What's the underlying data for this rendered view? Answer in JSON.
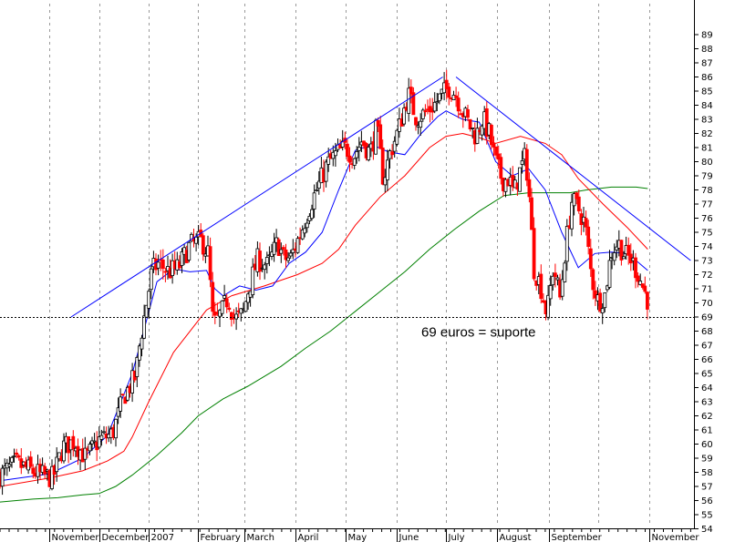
{
  "chart_data": {
    "type": "candlestick",
    "y_axis": {
      "min": 54,
      "max": 89,
      "step": 1,
      "position": "right",
      "grid": false
    },
    "x_axis": {
      "grid": "vertical-dashed",
      "labels": [
        "November",
        "December",
        "2007",
        "February",
        "March",
        "April",
        "May",
        "June",
        "July",
        "August",
        "September",
        "November"
      ],
      "label_day_index": [
        10,
        40,
        70,
        100,
        128,
        159,
        189,
        220,
        250,
        281,
        312,
        373
      ],
      "gridline_day_index": [
        10,
        40,
        70,
        100,
        128,
        159,
        189,
        220,
        250,
        281,
        312,
        342,
        373
      ],
      "range_days": [
        -20,
        400
      ]
    },
    "colors": {
      "up_candle": "#000000",
      "down_candle": "#ff0000",
      "ma_short": "#0000ff",
      "ma_medium": "#ff0000",
      "ma_long": "#008000",
      "trendline": "#0000ff",
      "support_line": "#000000",
      "grid": "#999999"
    },
    "trendlines": [
      {
        "name": "",
        "from": {
          "day": 23,
          "value": 69
        },
        "to": {
          "day": 248,
          "value": 86
        }
      },
      {
        "name": "",
        "from": {
          "day": 256,
          "value": 86
        },
        "to": {
          "day": 398,
          "value": 73
        }
      }
    ],
    "support_line": {
      "value": 69
    },
    "annotation": {
      "text": "69 euros = suporte",
      "day": 235,
      "value": 67.6
    },
    "moving_averages": {
      "short": [
        [
          -20,
          57.4
        ],
        [
          10,
          57.9
        ],
        [
          30,
          59
        ],
        [
          45,
          60.6
        ],
        [
          60,
          65
        ],
        [
          75,
          71.5
        ],
        [
          85,
          72.4
        ],
        [
          95,
          72.2
        ],
        [
          105,
          72.3
        ],
        [
          110,
          71
        ],
        [
          115,
          70.5
        ],
        [
          125,
          71.2
        ],
        [
          135,
          70.9
        ],
        [
          145,
          71.2
        ],
        [
          155,
          72.8
        ],
        [
          165,
          73.6
        ],
        [
          175,
          75
        ],
        [
          185,
          78
        ],
        [
          195,
          80.8
        ],
        [
          205,
          81.2
        ],
        [
          215,
          80.7
        ],
        [
          225,
          80.5
        ],
        [
          235,
          82
        ],
        [
          245,
          83.2
        ],
        [
          250,
          83.6
        ],
        [
          260,
          83
        ],
        [
          270,
          82.8
        ],
        [
          280,
          80
        ],
        [
          290,
          79
        ],
        [
          300,
          79.5
        ],
        [
          310,
          78
        ],
        [
          320,
          75
        ],
        [
          330,
          72.5
        ],
        [
          340,
          73.5
        ],
        [
          350,
          73.6
        ],
        [
          360,
          73.5
        ],
        [
          370,
          72.5
        ],
        [
          372,
          72.3
        ]
      ],
      "medium": [
        [
          -20,
          57
        ],
        [
          10,
          57.6
        ],
        [
          30,
          58.1
        ],
        [
          45,
          58.8
        ],
        [
          55,
          59.5
        ],
        [
          60,
          60.5
        ],
        [
          70,
          63
        ],
        [
          85,
          66.5
        ],
        [
          105,
          69.5
        ],
        [
          120,
          70.5
        ],
        [
          140,
          71.2
        ],
        [
          160,
          72
        ],
        [
          175,
          72.8
        ],
        [
          185,
          73.8
        ],
        [
          195,
          75.5
        ],
        [
          210,
          77.5
        ],
        [
          225,
          79
        ],
        [
          240,
          81
        ],
        [
          250,
          81.8
        ],
        [
          260,
          82
        ],
        [
          270,
          81.7
        ],
        [
          280,
          81.3
        ],
        [
          295,
          81.8
        ],
        [
          310,
          81.3
        ],
        [
          320,
          80.5
        ],
        [
          330,
          78.8
        ],
        [
          345,
          77
        ],
        [
          360,
          75.3
        ],
        [
          372,
          73.8
        ]
      ],
      "long": [
        [
          -20,
          55.9
        ],
        [
          0,
          56.1
        ],
        [
          15,
          56.2
        ],
        [
          30,
          56.4
        ],
        [
          40,
          56.5
        ],
        [
          50,
          57
        ],
        [
          60,
          57.8
        ],
        [
          75,
          59.2
        ],
        [
          90,
          60.8
        ],
        [
          100,
          62
        ],
        [
          115,
          63.2
        ],
        [
          130,
          64.1
        ],
        [
          150,
          65.5
        ],
        [
          165,
          66.8
        ],
        [
          180,
          68
        ],
        [
          195,
          69.4
        ],
        [
          210,
          70.8
        ],
        [
          225,
          72.2
        ],
        [
          240,
          73.8
        ],
        [
          255,
          75.2
        ],
        [
          270,
          76.5
        ],
        [
          285,
          77.6
        ],
        [
          300,
          77.8
        ],
        [
          310,
          77.8
        ],
        [
          325,
          77.8
        ],
        [
          335,
          78
        ],
        [
          350,
          78.2
        ],
        [
          365,
          78.2
        ],
        [
          372,
          78.1
        ]
      ]
    },
    "price_path": [
      [
        -20,
        57.8
      ],
      [
        -10,
        58.6
      ],
      [
        5,
        57.8
      ],
      [
        12,
        57.6
      ],
      [
        18,
        59.8
      ],
      [
        25,
        60.2
      ],
      [
        32,
        59
      ],
      [
        40,
        60.3
      ],
      [
        48,
        60.7
      ],
      [
        55,
        63.4
      ],
      [
        62,
        64.8
      ],
      [
        65,
        67.5
      ],
      [
        68,
        69.5
      ],
      [
        72,
        72.3
      ],
      [
        76,
        72.8
      ],
      [
        82,
        72.2
      ],
      [
        88,
        72.5
      ],
      [
        95,
        74.1
      ],
      [
        102,
        74.4
      ],
      [
        106,
        73.5
      ],
      [
        109,
        68.4
      ],
      [
        114,
        69.3
      ],
      [
        118,
        70.4
      ],
      [
        122,
        68.8
      ],
      [
        127,
        69.2
      ],
      [
        130,
        70.8
      ],
      [
        136,
        73.1
      ],
      [
        142,
        72.6
      ],
      [
        148,
        74.3
      ],
      [
        152,
        73.1
      ],
      [
        156,
        73.2
      ],
      [
        162,
        75
      ],
      [
        168,
        77
      ],
      [
        173,
        78.4
      ],
      [
        178,
        79.8
      ],
      [
        184,
        80.6
      ],
      [
        189,
        81
      ],
      [
        194,
        80.4
      ],
      [
        199,
        81.5
      ],
      [
        204,
        80.6
      ],
      [
        208,
        82.5
      ],
      [
        212,
        78.7
      ],
      [
        216,
        80.6
      ],
      [
        221,
        82.2
      ],
      [
        227,
        84.8
      ],
      [
        232,
        83.1
      ],
      [
        238,
        83.5
      ],
      [
        244,
        84.2
      ],
      [
        248,
        84.8
      ],
      [
        252,
        85.3
      ],
      [
        256,
        84.7
      ],
      [
        260,
        83.6
      ],
      [
        264,
        82.6
      ],
      [
        268,
        81.8
      ],
      [
        272,
        83.1
      ],
      [
        276,
        82
      ],
      [
        280,
        80
      ],
      [
        284,
        78.7
      ],
      [
        288,
        78.8
      ],
      [
        291,
        77.7
      ],
      [
        294,
        79.1
      ],
      [
        298,
        80.4
      ],
      [
        300,
        78.1
      ],
      [
        303,
        72.5
      ],
      [
        307,
        71.3
      ],
      [
        311,
        69.2
      ],
      [
        315,
        72.6
      ],
      [
        319,
        70.3
      ],
      [
        322,
        73.7
      ],
      [
        326,
        77.2
      ],
      [
        330,
        76.7
      ],
      [
        334,
        75.6
      ],
      [
        338,
        71.8
      ],
      [
        342,
        70.1
      ],
      [
        346,
        70.5
      ],
      [
        350,
        73.6
      ],
      [
        354,
        74.3
      ],
      [
        358,
        73.4
      ],
      [
        362,
        73.1
      ],
      [
        366,
        72.1
      ],
      [
        372,
        70.2
      ]
    ]
  }
}
